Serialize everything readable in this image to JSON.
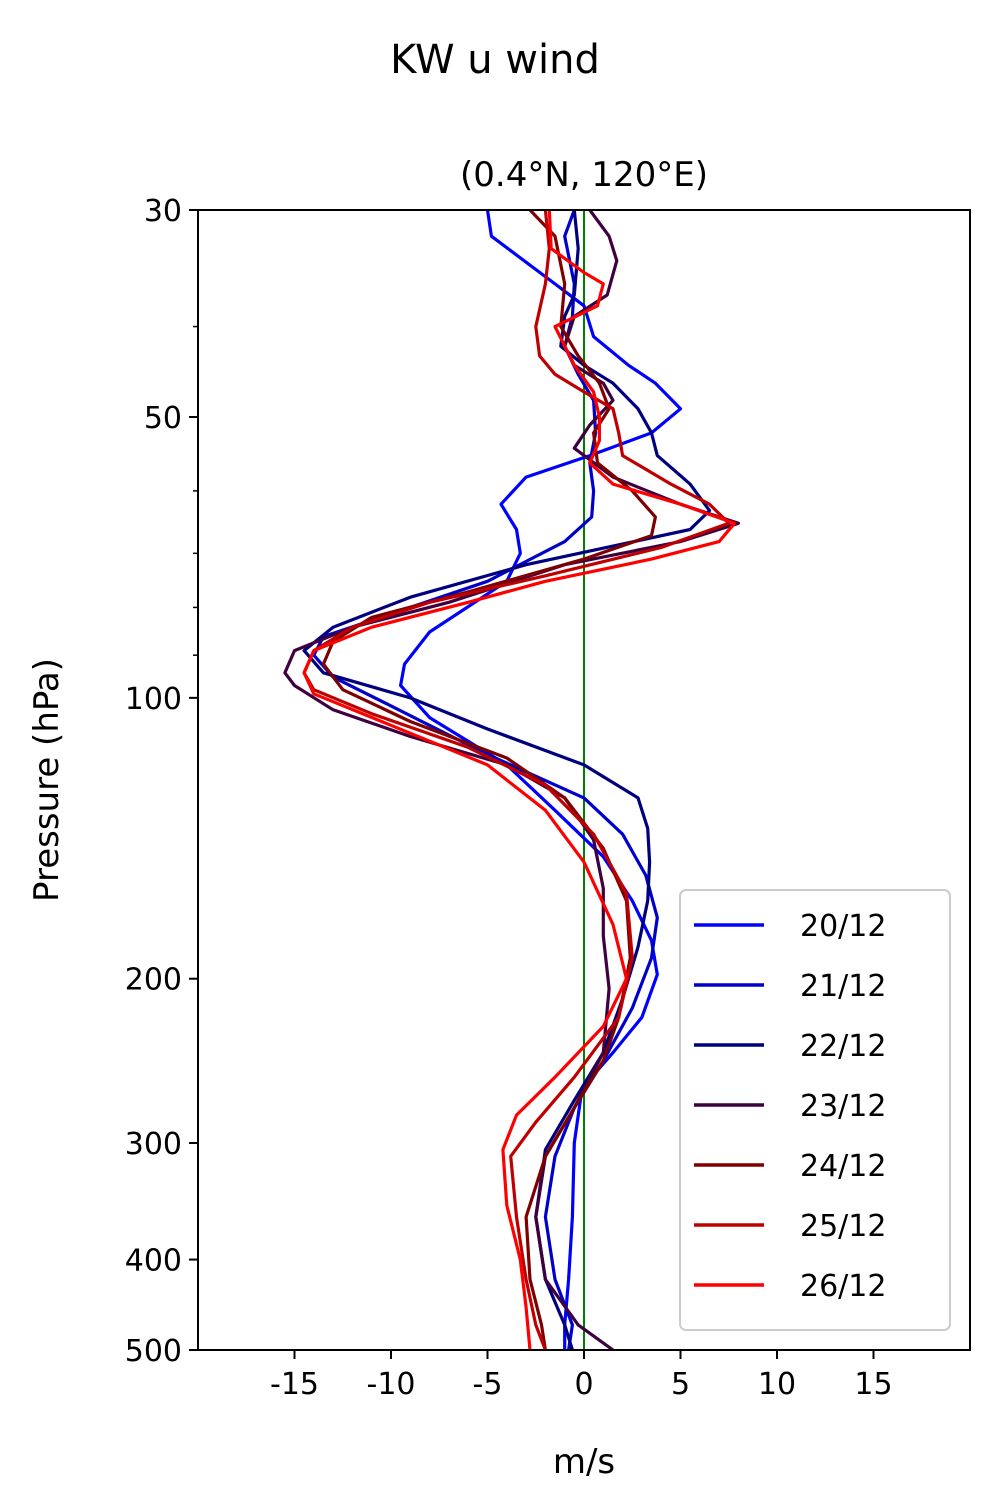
{
  "chart_data": {
    "type": "line",
    "title": "KW u wind",
    "subtitle": "(0.4°N, 120°E)",
    "xlabel": "m/s",
    "ylabel": "Pressure (hPa)",
    "xlim": [
      -20,
      20
    ],
    "ylim": [
      500,
      30
    ],
    "yscale": "log",
    "x_ticks": [
      -15,
      -10,
      -5,
      0,
      5,
      10,
      15
    ],
    "x_tick_labels": [
      "-15",
      "-10",
      "-5",
      "0",
      "5",
      "10",
      "15"
    ],
    "y_ticks": [
      30,
      50,
      100,
      200,
      300,
      400,
      500
    ],
    "y_tick_labels": [
      "30",
      "50",
      "100",
      "200",
      "300",
      "400",
      "500"
    ],
    "y_minor_ticks": [
      40,
      60,
      70,
      80,
      90
    ],
    "grid": false,
    "legend_position": "lower-right",
    "reference_line": {
      "x": 0,
      "color": "#008000"
    },
    "series": [
      {
        "name": "20/12",
        "color": "#0000ff",
        "points": [
          [
            -5,
            30
          ],
          [
            -4.8,
            32
          ],
          [
            -1.5,
            36
          ],
          [
            0,
            38
          ],
          [
            0.5,
            41
          ],
          [
            2.3,
            44
          ],
          [
            3.7,
            46
          ],
          [
            5,
            49
          ],
          [
            3.5,
            52
          ],
          [
            0.3,
            55
          ],
          [
            -3,
            58
          ],
          [
            -4.3,
            62
          ],
          [
            -3.5,
            66
          ],
          [
            -3.3,
            70
          ],
          [
            -4,
            75
          ],
          [
            -8,
            85
          ],
          [
            -9.3,
            92
          ],
          [
            -9.5,
            97
          ],
          [
            -8,
            105
          ],
          [
            -4,
            118
          ],
          [
            -1.5,
            132
          ],
          [
            1,
            148
          ],
          [
            2.5,
            165
          ],
          [
            3.5,
            182
          ],
          [
            3.8,
            198
          ],
          [
            3,
            220
          ],
          [
            1.5,
            240
          ],
          [
            -0.1,
            262
          ],
          [
            -0.5,
            300
          ],
          [
            -0.6,
            360
          ],
          [
            -0.8,
            420
          ],
          [
            -1,
            470
          ],
          [
            -1,
            500
          ]
        ]
      },
      {
        "name": "21/12",
        "color": "#0000cc",
        "points": [
          [
            -0.5,
            30
          ],
          [
            -1,
            32
          ],
          [
            -0.5,
            36
          ],
          [
            -0.6,
            39
          ],
          [
            -1,
            42
          ],
          [
            -0.3,
            45
          ],
          [
            0.5,
            48
          ],
          [
            0.6,
            52
          ],
          [
            0.3,
            56
          ],
          [
            0.5,
            60
          ],
          [
            0.4,
            64
          ],
          [
            -1,
            68
          ],
          [
            -5,
            75
          ],
          [
            -9,
            80
          ],
          [
            -13.5,
            86
          ],
          [
            -14,
            90
          ],
          [
            -13,
            95
          ],
          [
            -10,
            102
          ],
          [
            -5,
            115
          ],
          [
            0,
            128
          ],
          [
            2,
            140
          ],
          [
            3.2,
            155
          ],
          [
            3.8,
            172
          ],
          [
            3.5,
            190
          ],
          [
            2.5,
            215
          ],
          [
            1,
            245
          ],
          [
            -0.5,
            275
          ],
          [
            -1.5,
            310
          ],
          [
            -2,
            360
          ],
          [
            -1.5,
            420
          ],
          [
            -0.6,
            470
          ],
          [
            -0.8,
            500
          ]
        ]
      },
      {
        "name": "22/12",
        "color": "#00007f",
        "points": [
          [
            -0.5,
            30
          ],
          [
            -0.3,
            33
          ],
          [
            -0.5,
            37
          ],
          [
            -1,
            39
          ],
          [
            -1.2,
            42
          ],
          [
            0,
            44
          ],
          [
            1.5,
            46
          ],
          [
            2.8,
            49
          ],
          [
            3.5,
            52
          ],
          [
            3.8,
            55
          ],
          [
            5.5,
            59
          ],
          [
            6.5,
            63
          ],
          [
            5.5,
            66
          ],
          [
            -3,
            72
          ],
          [
            -9,
            78
          ],
          [
            -13,
            84
          ],
          [
            -14.5,
            89
          ],
          [
            -13.5,
            94
          ],
          [
            -9,
            100
          ],
          [
            -5,
            108
          ],
          [
            0,
            118
          ],
          [
            2.8,
            128
          ],
          [
            3.3,
            138
          ],
          [
            3.4,
            150
          ],
          [
            3.3,
            165
          ],
          [
            2.8,
            185
          ],
          [
            2,
            210
          ],
          [
            1,
            240
          ],
          [
            -0.5,
            270
          ],
          [
            -2,
            305
          ],
          [
            -2.5,
            360
          ],
          [
            -2,
            420
          ],
          [
            -1,
            470
          ],
          [
            -0.6,
            500
          ]
        ]
      },
      {
        "name": "23/12",
        "color": "#3f003f",
        "points": [
          [
            0.3,
            30
          ],
          [
            1.3,
            32
          ],
          [
            1.7,
            34
          ],
          [
            1.2,
            37
          ],
          [
            -0.5,
            39
          ],
          [
            -1,
            42
          ],
          [
            -0.5,
            44
          ],
          [
            1,
            46
          ],
          [
            1.5,
            48
          ],
          [
            0.3,
            51
          ],
          [
            -0.5,
            54
          ],
          [
            1.5,
            58
          ],
          [
            5,
            62
          ],
          [
            8,
            65
          ],
          [
            5,
            68
          ],
          [
            -1,
            72
          ],
          [
            -7,
            79
          ],
          [
            -12,
            84
          ],
          [
            -15,
            89
          ],
          [
            -15.5,
            94
          ],
          [
            -15,
            97
          ],
          [
            -13,
            103
          ],
          [
            -9,
            110
          ],
          [
            -4,
            118
          ],
          [
            -1,
            128
          ],
          [
            0.5,
            142
          ],
          [
            1,
            160
          ],
          [
            1,
            180
          ],
          [
            1.3,
            205
          ],
          [
            1,
            240
          ],
          [
            -0.5,
            275
          ],
          [
            -2,
            310
          ],
          [
            -2.5,
            360
          ],
          [
            -2,
            420
          ],
          [
            -0.3,
            470
          ],
          [
            1.5,
            500
          ]
        ]
      },
      {
        "name": "24/12",
        "color": "#7f0000",
        "points": [
          [
            -2.8,
            30
          ],
          [
            -1.5,
            32
          ],
          [
            -1,
            36
          ],
          [
            -1.2,
            40
          ],
          [
            -0.3,
            43
          ],
          [
            0.8,
            46
          ],
          [
            1.3,
            49
          ],
          [
            0.5,
            52
          ],
          [
            0.7,
            56
          ],
          [
            2.5,
            60
          ],
          [
            3.7,
            64
          ],
          [
            3.5,
            67
          ],
          [
            0,
            71
          ],
          [
            -6,
            77
          ],
          [
            -11,
            82
          ],
          [
            -13,
            87
          ],
          [
            -13.5,
            92
          ],
          [
            -12.5,
            98
          ],
          [
            -9,
            106
          ],
          [
            -4,
            116
          ],
          [
            -1,
            128
          ],
          [
            1,
            145
          ],
          [
            2.2,
            165
          ],
          [
            2.4,
            190
          ],
          [
            1.8,
            220
          ],
          [
            1,
            245
          ],
          [
            -0.5,
            275
          ],
          [
            -2,
            310
          ],
          [
            -3,
            360
          ],
          [
            -2.8,
            420
          ],
          [
            -2.2,
            470
          ],
          [
            -2,
            500
          ]
        ]
      },
      {
        "name": "25/12",
        "color": "#bf0000",
        "points": [
          [
            -2,
            30
          ],
          [
            -1.8,
            33
          ],
          [
            -2,
            36
          ],
          [
            -2.5,
            40
          ],
          [
            -2.3,
            43
          ],
          [
            -1.5,
            45
          ],
          [
            0,
            47
          ],
          [
            1.5,
            49
          ],
          [
            1.8,
            52
          ],
          [
            2,
            55
          ],
          [
            4.5,
            59
          ],
          [
            6.5,
            62
          ],
          [
            7.5,
            65
          ],
          [
            4,
            69
          ],
          [
            -2,
            74
          ],
          [
            -8,
            79
          ],
          [
            -12,
            84
          ],
          [
            -14,
            89
          ],
          [
            -14.5,
            94
          ],
          [
            -14,
            98
          ],
          [
            -11,
            104
          ],
          [
            -6,
            113
          ],
          [
            -2,
            124
          ],
          [
            0.5,
            140
          ],
          [
            2.2,
            162
          ],
          [
            2.5,
            190
          ],
          [
            1.8,
            220
          ],
          [
            -0.5,
            255
          ],
          [
            -2.5,
            285
          ],
          [
            -3.8,
            310
          ],
          [
            -3.5,
            360
          ],
          [
            -3,
            420
          ],
          [
            -2.5,
            470
          ],
          [
            -2,
            500
          ]
        ]
      },
      {
        "name": "26/12",
        "color": "#ff0000",
        "points": [
          [
            -1.8,
            30
          ],
          [
            -1.7,
            33
          ],
          [
            0,
            35
          ],
          [
            1,
            36
          ],
          [
            0.7,
            38
          ],
          [
            -1.5,
            40
          ],
          [
            -0.5,
            44
          ],
          [
            0.5,
            47
          ],
          [
            0.8,
            50
          ],
          [
            0.8,
            53
          ],
          [
            0.3,
            56
          ],
          [
            1.5,
            59
          ],
          [
            5,
            62
          ],
          [
            7.8,
            65
          ],
          [
            7,
            68
          ],
          [
            3.5,
            71
          ],
          [
            -2,
            75
          ],
          [
            -6,
            79
          ],
          [
            -11,
            84
          ],
          [
            -14,
            89
          ],
          [
            -14.5,
            94
          ],
          [
            -14,
            99
          ],
          [
            -10,
            107
          ],
          [
            -5,
            118
          ],
          [
            -2,
            132
          ],
          [
            0,
            150
          ],
          [
            1.5,
            175
          ],
          [
            2.2,
            200
          ],
          [
            1,
            225
          ],
          [
            -1.5,
            255
          ],
          [
            -3.5,
            280
          ],
          [
            -4.2,
            305
          ],
          [
            -4,
            350
          ],
          [
            -3.3,
            400
          ],
          [
            -3,
            450
          ],
          [
            -2.8,
            500
          ]
        ]
      }
    ]
  }
}
